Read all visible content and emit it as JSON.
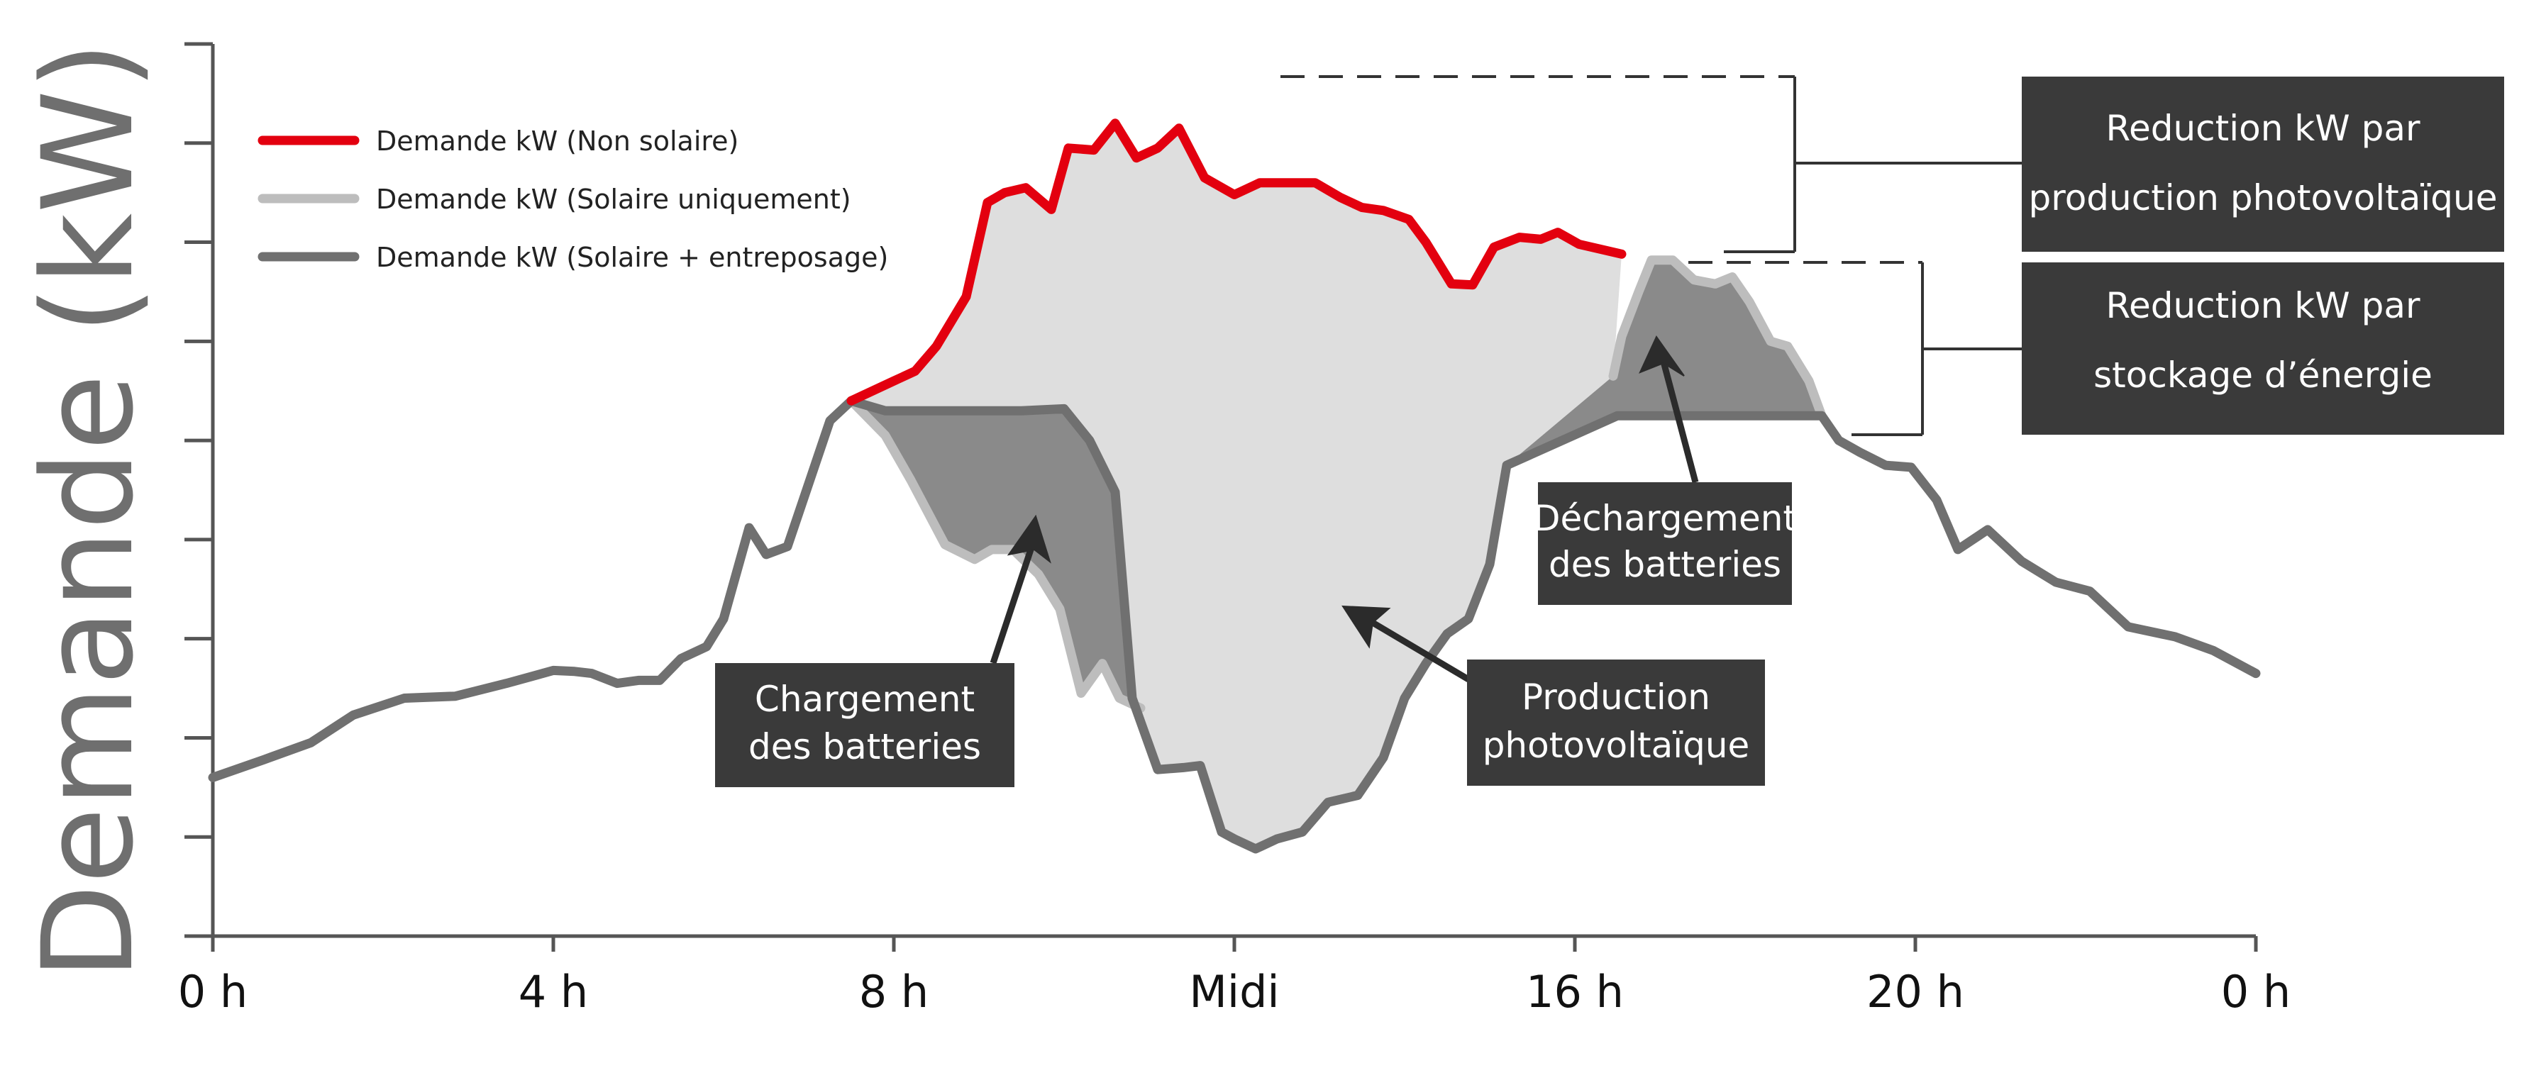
{
  "chart_data": {
    "type": "line",
    "title": "",
    "xlabel": "",
    "ylabel": "Demande (kW)",
    "x_ticks": [
      "0 h",
      "4 h",
      "8 h",
      "Midi",
      "16 h",
      "20 h",
      "0 h"
    ],
    "x_tick_values": [
      0,
      4,
      8,
      12,
      16,
      20,
      24
    ],
    "xlim": [
      0,
      24
    ],
    "ylim": [
      0,
      9
    ],
    "y_tick_count": 9,
    "y_tick_labels_shown": false,
    "grid": false,
    "legend_position": "top-left",
    "colors": {
      "non_solaire": "#e3000f",
      "solaire_uniquement": "#bdbdbd",
      "solaire_entreposage": "#707070",
      "pv_fill": "#dedede",
      "storage_fill": "#8a8a8a",
      "box_bg": "#3a3a3a"
    },
    "series": [
      {
        "name": "Demande kW (Non solaire)",
        "key": "non_solaire",
        "x": [
          7.5,
          8,
          8.25,
          8.5,
          8.85,
          9.1,
          9.3,
          9.55,
          9.85,
          10.05,
          10.35,
          10.6,
          10.85,
          11.1,
          11.35,
          11.65,
          12,
          12.3,
          12.6,
          12.95,
          13.25,
          13.5,
          13.75,
          14.05,
          14.25,
          14.55,
          14.8,
          15.05,
          15.35,
          15.6,
          15.8,
          16.05,
          16.55
        ],
        "y": [
          5.4,
          5.6,
          5.7,
          5.95,
          6.45,
          7.4,
          7.5,
          7.55,
          7.33,
          7.95,
          7.93,
          8.2,
          7.85,
          7.95,
          8.15,
          7.65,
          7.48,
          7.6,
          7.6,
          7.6,
          7.45,
          7.35,
          7.32,
          7.23,
          7.0,
          6.58,
          6.57,
          6.95,
          7.05,
          7.03,
          7.1,
          6.98,
          6.88
        ]
      },
      {
        "name": "Demande kW (Solaire uniquement)",
        "key": "solaire_uniquement",
        "x": [
          7.5,
          7.9,
          8.2,
          8.6,
          8.95,
          9.15,
          9.4,
          9.7,
          9.95,
          10.2,
          10.45,
          10.65,
          10.9,
          16.45,
          16.55,
          16.75,
          16.9,
          17.15,
          17.4,
          17.65,
          17.85,
          18.05,
          18.3,
          18.5,
          18.75,
          18.9
        ],
        "y": [
          5.4,
          5.05,
          4.6,
          3.95,
          3.8,
          3.9,
          3.9,
          3.65,
          3.3,
          2.45,
          2.75,
          2.4,
          2.3,
          5.65,
          6.05,
          6.5,
          6.82,
          6.82,
          6.62,
          6.58,
          6.65,
          6.4,
          6.0,
          5.95,
          5.6,
          5.25
        ]
      },
      {
        "name": "Demande kW (Solaire + entreposage)",
        "key": "solaire_entreposage",
        "x": [
          0,
          0.6,
          1.15,
          1.65,
          2.25,
          2.85,
          3.45,
          4.0,
          4.25,
          4.45,
          4.75,
          5.0,
          5.25,
          5.5,
          5.8,
          6.0,
          6.3,
          6.5,
          6.75,
          7.25,
          7.5,
          7.9,
          8.4,
          9.0,
          9.5,
          10.0,
          10.3,
          10.6,
          10.8,
          11.1,
          11.4,
          11.6,
          11.85,
          12.0,
          12.25,
          12.5,
          12.8,
          13.1,
          13.45,
          13.75,
          14.0,
          14.25,
          14.5,
          14.75,
          15.0,
          15.2,
          16.5,
          18.9,
          19.1,
          19.35,
          19.65,
          19.95,
          20.25,
          20.5,
          20.85,
          21.25,
          21.65,
          22.05,
          22.5,
          23.05,
          23.5,
          24.0
        ],
        "y": [
          1.6,
          1.78,
          1.95,
          2.23,
          2.4,
          2.42,
          2.55,
          2.68,
          2.67,
          2.65,
          2.55,
          2.58,
          2.58,
          2.8,
          2.92,
          3.2,
          4.12,
          3.85,
          3.93,
          5.2,
          5.4,
          5.3,
          5.3,
          5.3,
          5.3,
          5.32,
          5.0,
          4.48,
          2.4,
          1.68,
          1.7,
          1.72,
          1.05,
          0.98,
          0.88,
          0.98,
          1.05,
          1.35,
          1.42,
          1.8,
          2.4,
          2.75,
          3.05,
          3.2,
          3.75,
          4.75,
          5.25,
          5.25,
          5.0,
          4.88,
          4.75,
          4.73,
          4.4,
          3.9,
          4.1,
          3.78,
          3.57,
          3.48,
          3.12,
          3.02,
          2.88,
          2.65
        ]
      }
    ],
    "legend": [
      "Demande kW (Non solaire)",
      "Demande kW (Solaire uniquement)",
      "Demande kW (Solaire + entreposage)"
    ],
    "annotations": {
      "charge": {
        "line1": "Chargement",
        "line2": "des batteries"
      },
      "pv": {
        "line1": "Production",
        "line2": "photovoltaïque"
      },
      "discharge": {
        "line1": "Déchargement",
        "line2": "des batteries"
      }
    },
    "boxes": {
      "pv_reduction": {
        "line1": "Reduction kW par",
        "line2": "production photovoltaïque"
      },
      "storage_reduction": {
        "line1": "Reduction kW par",
        "line2": "stockage d’énergie"
      }
    }
  }
}
